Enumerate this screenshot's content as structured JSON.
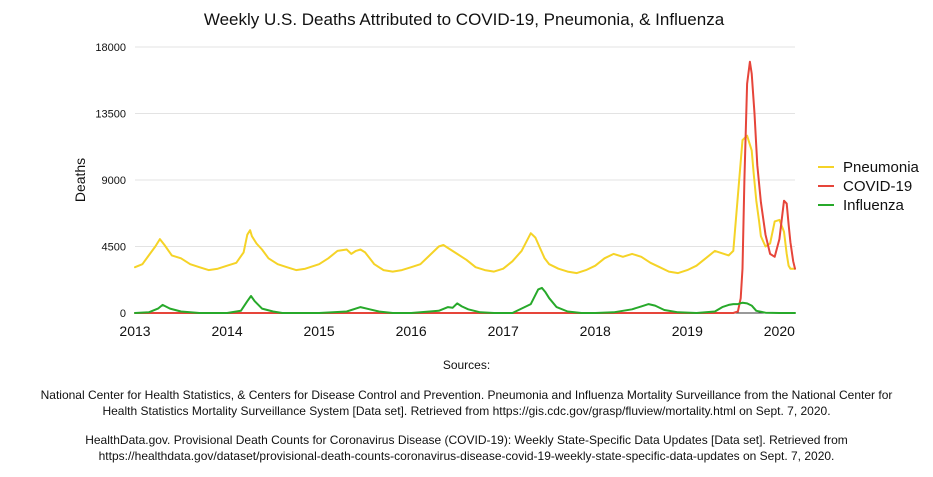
{
  "chart_data": {
    "type": "line",
    "title": "Weekly U.S. Deaths Attributed to COVID-19, Pneumonia, & Influenza",
    "xlabel": "",
    "ylabel": "Deaths",
    "xlim": [
      2013.0,
      2020.17
    ],
    "ylim": [
      0,
      18000
    ],
    "x_ticks": [
      "2013",
      "2014",
      "2015",
      "2016",
      "2017",
      "2018",
      "2019",
      "2020"
    ],
    "y_ticks": [
      "0",
      "4500",
      "9000",
      "13500",
      "18000"
    ],
    "grid": true,
    "legend_position": "right",
    "series": [
      {
        "name": "Pneumonia",
        "color": "#f5d327",
        "x": [
          2013.0,
          2013.08,
          2013.15,
          2013.22,
          2013.27,
          2013.32,
          2013.4,
          2013.5,
          2013.6,
          2013.7,
          2013.8,
          2013.9,
          2014.0,
          2014.1,
          2014.18,
          2014.22,
          2014.25,
          2014.27,
          2014.32,
          2014.38,
          2014.45,
          2014.55,
          2014.65,
          2014.75,
          2014.85,
          2015.0,
          2015.1,
          2015.2,
          2015.3,
          2015.35,
          2015.4,
          2015.45,
          2015.5,
          2015.55,
          2015.6,
          2015.7,
          2015.8,
          2015.9,
          2016.0,
          2016.1,
          2016.2,
          2016.3,
          2016.35,
          2016.4,
          2016.5,
          2016.6,
          2016.7,
          2016.8,
          2016.9,
          2017.0,
          2017.1,
          2017.2,
          2017.3,
          2017.35,
          2017.4,
          2017.45,
          2017.5,
          2017.6,
          2017.7,
          2017.8,
          2017.9,
          2018.0,
          2018.1,
          2018.2,
          2018.3,
          2018.4,
          2018.5,
          2018.6,
          2018.7,
          2018.8,
          2018.9,
          2019.0,
          2019.1,
          2019.2,
          2019.3,
          2019.4,
          2019.45,
          2019.5,
          2019.6,
          2019.65,
          2019.7,
          2019.72,
          2019.75,
          2019.78,
          2019.8,
          2019.85,
          2019.9,
          2019.95,
          2020.0,
          2020.05,
          2020.08,
          2020.1,
          2020.12,
          2020.15,
          2020.17
        ],
        "values": [
          3100,
          3300,
          3900,
          4500,
          5000,
          4600,
          3900,
          3700,
          3300,
          3100,
          2900,
          3000,
          3200,
          3400,
          4100,
          5300,
          5600,
          5200,
          4700,
          4300,
          3700,
          3300,
          3100,
          2900,
          3000,
          3300,
          3700,
          4200,
          4300,
          4000,
          4200,
          4300,
          4100,
          3700,
          3300,
          2900,
          2800,
          2900,
          3100,
          3300,
          3900,
          4500,
          4600,
          4400,
          4000,
          3600,
          3100,
          2900,
          2800,
          3000,
          3500,
          4200,
          5400,
          5100,
          4400,
          3700,
          3300,
          3000,
          2800,
          2700,
          2900,
          3200,
          3700,
          4000,
          3800,
          4000,
          3800,
          3400,
          3100,
          2800,
          2700,
          2900,
          3200,
          3700,
          4200,
          4000,
          3900,
          4200,
          11700,
          12000,
          11000,
          9500,
          7600,
          6200,
          5200,
          4500,
          4700,
          6200,
          6300,
          5500,
          4000,
          3200,
          3000,
          3000,
          3000
        ]
      },
      {
        "name": "COVID-19",
        "color": "#e6453a",
        "x": [
          2013.0,
          2019.45,
          2019.5,
          2019.55,
          2019.58,
          2019.6,
          2019.62,
          2019.65,
          2019.68,
          2019.7,
          2019.73,
          2019.76,
          2019.8,
          2019.85,
          2019.9,
          2019.95,
          2020.0,
          2020.05,
          2020.08,
          2020.1,
          2020.12,
          2020.15,
          2020.17
        ],
        "values": [
          0,
          0,
          0,
          100,
          1000,
          3000,
          9000,
          15500,
          17000,
          16200,
          13500,
          10000,
          7500,
          5300,
          4000,
          3800,
          5000,
          7600,
          7400,
          6000,
          4800,
          3500,
          3000
        ]
      },
      {
        "name": "Influenza",
        "color": "#27a92a",
        "x": [
          2013.0,
          2013.15,
          2013.25,
          2013.3,
          2013.38,
          2013.5,
          2013.7,
          2014.0,
          2014.15,
          2014.22,
          2014.26,
          2014.3,
          2014.38,
          2014.5,
          2014.6,
          2014.8,
          2015.0,
          2015.3,
          2015.45,
          2015.55,
          2015.65,
          2015.8,
          2016.0,
          2016.3,
          2016.4,
          2016.45,
          2016.5,
          2016.55,
          2016.62,
          2016.75,
          2016.9,
          2017.1,
          2017.3,
          2017.38,
          2017.42,
          2017.46,
          2017.5,
          2017.58,
          2017.7,
          2017.85,
          2018.0,
          2018.2,
          2018.4,
          2018.5,
          2018.58,
          2018.65,
          2018.75,
          2018.9,
          2019.1,
          2019.3,
          2019.38,
          2019.45,
          2019.5,
          2019.55,
          2019.6,
          2019.65,
          2019.7,
          2019.75,
          2019.85,
          2020.0,
          2020.17
        ],
        "values": [
          0,
          50,
          300,
          550,
          300,
          100,
          0,
          0,
          150,
          800,
          1150,
          800,
          300,
          100,
          0,
          0,
          0,
          100,
          400,
          250,
          100,
          0,
          0,
          150,
          400,
          350,
          650,
          450,
          250,
          50,
          0,
          0,
          600,
          1600,
          1700,
          1400,
          1000,
          400,
          100,
          0,
          0,
          50,
          250,
          450,
          600,
          500,
          200,
          50,
          0,
          100,
          400,
          550,
          600,
          600,
          700,
          650,
          500,
          150,
          20,
          0,
          0
        ]
      }
    ]
  },
  "sources": {
    "heading": "Sources:",
    "items": [
      "National Center for Health Statistics, & Centers for Disease Control and Prevention. Pneumonia and Influenza Mortality Surveillance from the National Center for Health Statistics Mortality Surveillance System [Data set]. Retrieved from https://gis.cdc.gov/grasp/fluview/mortality.html on Sept. 7, 2020.",
      "HealthData.gov.  Provisional Death Counts for Coronavirus Disease (COVID-19): Weekly State-Specific Data Updates [Data set]. Retrieved from https://healthdata.gov/dataset/provisional-death-counts-coronavirus-disease-covid-19-weekly-state-specific-data-updates on Sept. 7, 2020."
    ]
  }
}
